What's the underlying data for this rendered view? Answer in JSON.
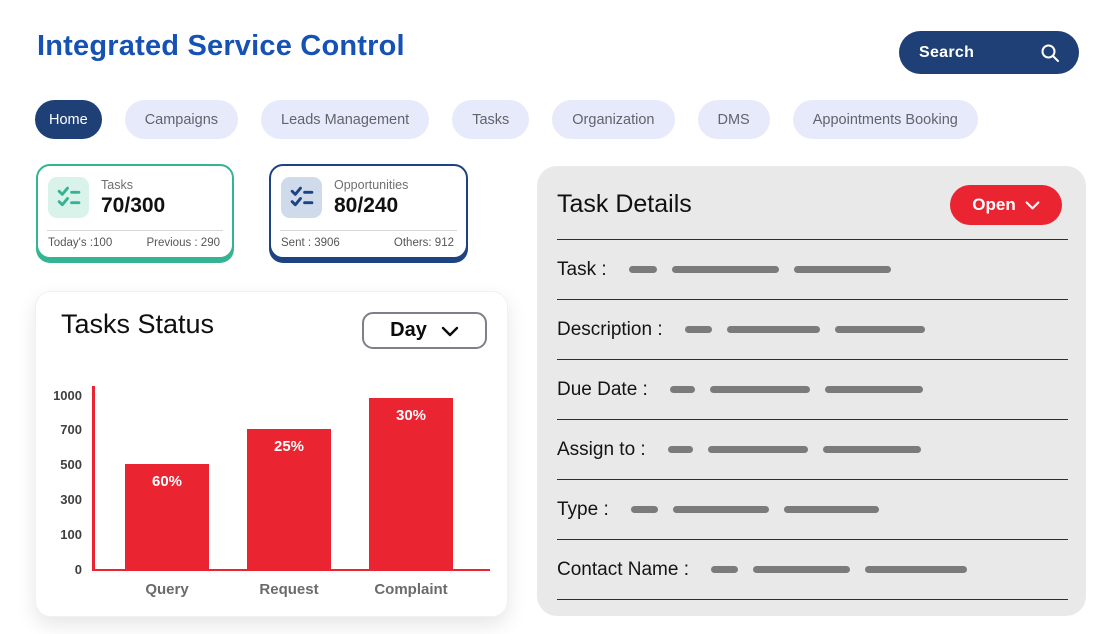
{
  "header": {
    "title": "Integrated Service Control",
    "search_label": "Search"
  },
  "nav": {
    "items": [
      {
        "label": "Home",
        "active": true
      },
      {
        "label": "Campaigns",
        "active": false
      },
      {
        "label": "Leads Management",
        "active": false
      },
      {
        "label": "Tasks",
        "active": false
      },
      {
        "label": "Organization",
        "active": false
      },
      {
        "label": "DMS",
        "active": false
      },
      {
        "label": "Appointments Booking",
        "active": false
      }
    ]
  },
  "stat_cards": [
    {
      "title": "Tasks",
      "value": "70/300",
      "footer_left": "Today's :100",
      "footer_right": "Previous : 290",
      "icon": "checklist-icon",
      "accent": "#35b493"
    },
    {
      "title": "Opportunities",
      "value": "80/240",
      "footer_left": "Sent : 3906",
      "footer_right": "Others: 912",
      "icon": "checklist-icon",
      "accent": "#1d4382"
    }
  ],
  "chart_card": {
    "title": "Tasks Status",
    "period_selector": "Day"
  },
  "chart_data": {
    "type": "bar",
    "title": "Tasks Status",
    "categories": [
      "Query",
      "Request",
      "Complaint"
    ],
    "values": [
      500,
      700,
      970
    ],
    "bar_labels": [
      "60%",
      "25%",
      "30%"
    ],
    "yticks": [
      0,
      100,
      300,
      500,
      700,
      1000
    ],
    "ylim": [
      0,
      1000
    ],
    "xlabel": "",
    "ylabel": "",
    "grid": false,
    "legend": false,
    "bar_color": "#ea2430",
    "axis_color": "#ea2430",
    "note": "y ticks are evenly spaced despite non-linear values"
  },
  "task_details": {
    "title": "Task Details",
    "status_button": "Open",
    "rows": [
      {
        "label": "Task :"
      },
      {
        "label": "Description :"
      },
      {
        "label": "Due Date :"
      },
      {
        "label": "Assign to :"
      },
      {
        "label": "Type :"
      },
      {
        "label": "Contact Name :"
      }
    ]
  },
  "colors": {
    "brand_blue": "#1552b4",
    "navy": "#1e4076",
    "navy_border": "#1d4382",
    "red": "#ea2430",
    "green": "#35b493",
    "green_icon_bg": "#d9f2ea",
    "navy_icon_bg": "#cfdaeb",
    "pill_bg": "#e6eafb",
    "panel_bg": "#e9e9e9",
    "placeholder_gray": "#7b7b7b"
  }
}
